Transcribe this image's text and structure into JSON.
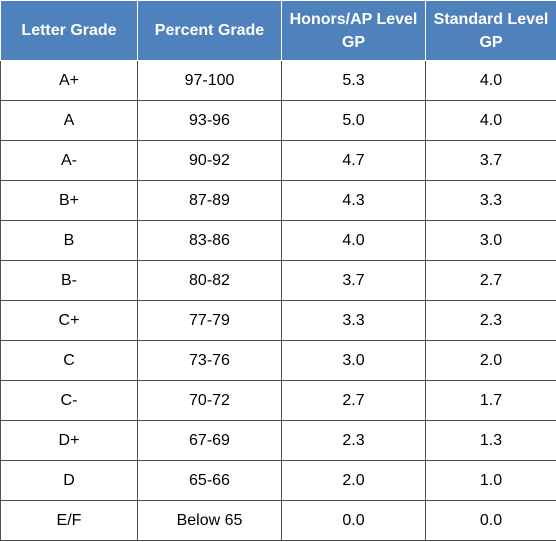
{
  "headers": [
    "Letter Grade",
    "Percent Grade",
    "Honors/AP Level GP",
    "Standard Level GP"
  ],
  "rows": [
    [
      "A+",
      "97-100",
      "5.3",
      "4.0"
    ],
    [
      "A",
      "93-96",
      "5.0",
      "4.0"
    ],
    [
      "A-",
      "90-92",
      "4.7",
      "3.7"
    ],
    [
      "B+",
      "87-89",
      "4.3",
      "3.3"
    ],
    [
      "B",
      "83-86",
      "4.0",
      "3.0"
    ],
    [
      "B-",
      "80-82",
      "3.7",
      "2.7"
    ],
    [
      "C+",
      "77-79",
      "3.3",
      "2.3"
    ],
    [
      "C",
      "73-76",
      "3.0",
      "2.0"
    ],
    [
      "C-",
      "70-72",
      "2.7",
      "1.7"
    ],
    [
      "D+",
      "67-69",
      "2.3",
      "1.3"
    ],
    [
      "D",
      "65-66",
      "2.0",
      "1.0"
    ],
    [
      "E/F",
      "Below 65",
      "0.0",
      "0.0"
    ]
  ],
  "colors": {
    "header_bg": "#4f81bd",
    "header_text": "#ffffff",
    "border": "#4f4f4f"
  }
}
